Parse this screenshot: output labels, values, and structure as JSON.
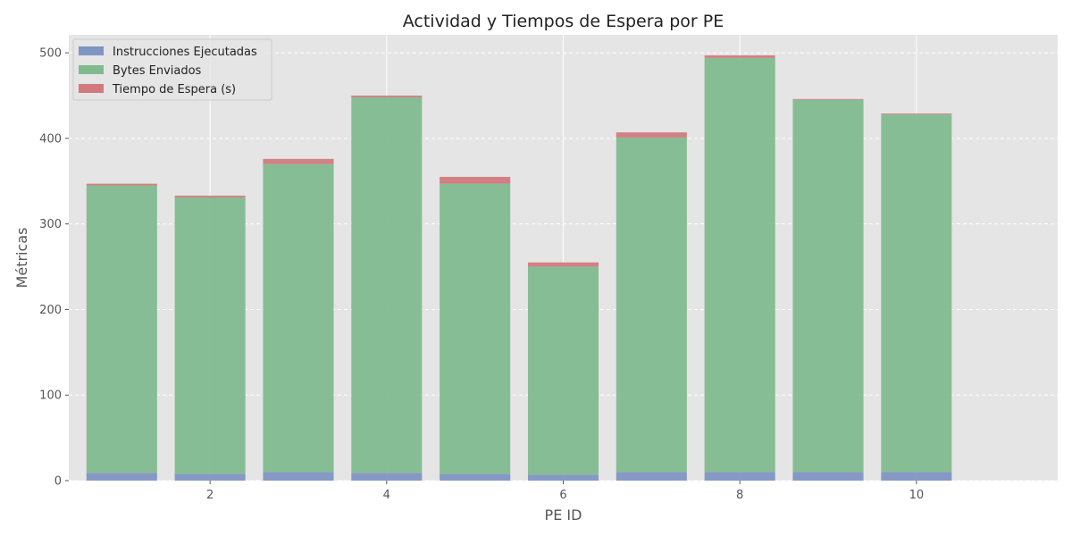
{
  "chart_data": {
    "type": "bar",
    "stacked": true,
    "title": "Actividad y Tiempos de Espera por PE",
    "xlabel": "PE ID",
    "ylabel": "Métricas",
    "x": [
      1,
      2,
      3,
      4,
      5,
      6,
      7,
      8,
      9,
      10
    ],
    "xticks": [
      2,
      4,
      6,
      8,
      10
    ],
    "xlim": [
      0.4,
      11.6
    ],
    "ylim": [
      0,
      521
    ],
    "yticks": [
      0,
      100,
      200,
      300,
      400,
      500
    ],
    "grid": true,
    "legend_position": "top-left",
    "series": [
      {
        "name": "Instrucciones Ejecutadas",
        "color": "#7f95c2",
        "values": [
          9,
          8,
          10,
          9,
          8,
          7,
          10,
          10,
          10,
          10
        ]
      },
      {
        "name": "Bytes Enviados",
        "color": "#82ba8f",
        "values": [
          336,
          323,
          360,
          439,
          339,
          243,
          391,
          484,
          435,
          418
        ]
      },
      {
        "name": "Tiempo de Espera (s)",
        "color": "#d27a7e",
        "values": [
          2,
          2,
          6,
          2,
          8,
          5,
          6,
          3,
          1,
          1
        ]
      }
    ]
  }
}
